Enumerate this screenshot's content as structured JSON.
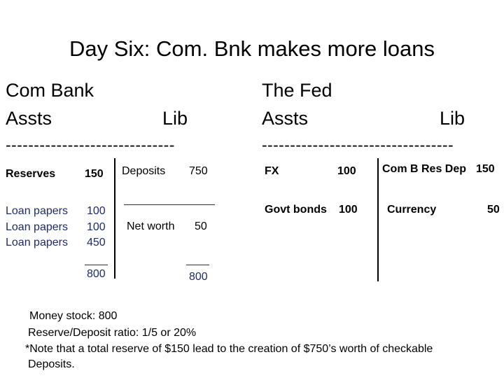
{
  "title": "Day Six: Com. Bnk makes more loans",
  "com_bank": {
    "heading": "Com Bank",
    "assets_label": "Assts",
    "liab_label": "Lib",
    "rule": "------------------------------",
    "reserves": {
      "label": "Reserves",
      "value": "150"
    },
    "deposits": {
      "label": "Deposits",
      "value": "750"
    },
    "loans": [
      {
        "label": "Loan papers",
        "value": "100"
      },
      {
        "label": "Loan papers",
        "value": "100"
      },
      {
        "label": "Loan papers",
        "value": "450"
      }
    ],
    "net_worth": {
      "label": "Net worth",
      "value": "50"
    },
    "assets_total": "800",
    "liab_total": "800"
  },
  "fed": {
    "heading": "The Fed",
    "assets_label": "Assts",
    "liab_label": "Lib",
    "rule": "----------------------------------",
    "fx": {
      "label": "FX",
      "value": "100"
    },
    "govt_bonds": {
      "label": "Govt bonds",
      "value": "100"
    },
    "com_b_res_dep": {
      "label": "Com B Res Dep",
      "value": "150"
    },
    "currency": {
      "label": "Currency",
      "value": "50"
    }
  },
  "notes": {
    "money_stock": "Money stock: 800",
    "ratio": "Reserve/Deposit ratio: 1/5 or 20%",
    "note_line1": "*Note that a total reserve of $150 lead to the creation of $750’s worth of checkable",
    "note_line2": "Deposits."
  }
}
